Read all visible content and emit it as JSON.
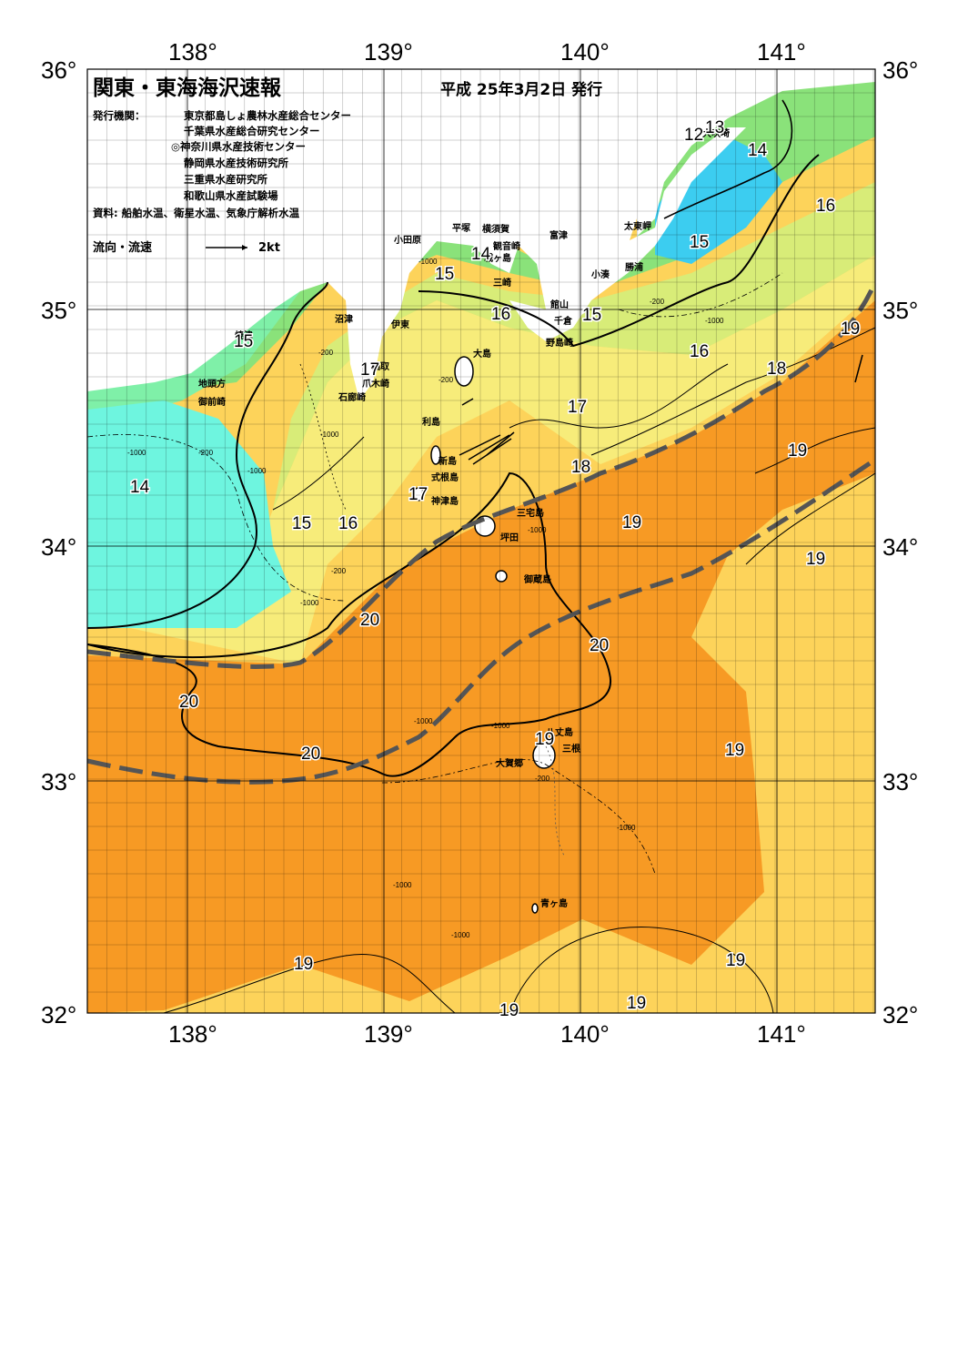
{
  "title": "関東・東海海沢速報",
  "issue_date": "平成 25年3月2日 発行",
  "publishers_label": "発行機関：",
  "publishers": [
    "東京都島しょ農林水産総合センター",
    "千葉県水産総合研究センター",
    "◎神奈川県水産技術センター",
    "静岡県水産技術研究所",
    "三重県水産研究所",
    "和歌山県水産試験場"
  ],
  "sources": "資料: 船舶水温、衛星水温、気象庁解析水温",
  "legend": {
    "label": "流向・流速",
    "scale": "2kt"
  },
  "axes": {
    "lon_ticks": [
      "138°",
      "139°",
      "140°",
      "141°"
    ],
    "lat_ticks": [
      "36°",
      "35°",
      "34°",
      "33°",
      "32°"
    ]
  },
  "colors": {
    "cold": "#6ef5df",
    "cyan": "#3ccdf0",
    "mint": "#7ff0a8",
    "green": "#8ae27a",
    "yellowgreen": "#d8ec78",
    "yellow": "#f7ec7a",
    "lightorange": "#fdd35a",
    "orange": "#f79a24",
    "land": "#ffffff",
    "kuroshio_axis": "#555555"
  },
  "places": [
    "小田原",
    "平塚",
    "横須賀",
    "観音崎",
    "富津",
    "太東岬",
    "大吠埼",
    "勝浦",
    "小湊",
    "館山",
    "千倉",
    "野島崎",
    "三崎",
    "城ヶ島",
    "沼津",
    "伊東",
    "大島",
    "稲取",
    "爪木崎",
    "石廊崎",
    "利島",
    "新島",
    "式根島",
    "神津島",
    "三宅島",
    "坪田",
    "御蔵島",
    "八丈島",
    "三根",
    "大賀郷",
    "青ヶ島",
    "地頭方",
    "御前崎",
    "焼津"
  ],
  "temperature_labels": [
    "12",
    "13",
    "14",
    "14",
    "15",
    "15",
    "15",
    "15",
    "16",
    "16",
    "16",
    "16",
    "17",
    "17",
    "17",
    "18",
    "18",
    "19",
    "19",
    "19",
    "19",
    "19",
    "19",
    "19",
    "19",
    "14",
    "15",
    "16",
    "20",
    "20",
    "20",
    "20",
    "15"
  ],
  "depth_labels": [
    "-200",
    "-1000"
  ]
}
